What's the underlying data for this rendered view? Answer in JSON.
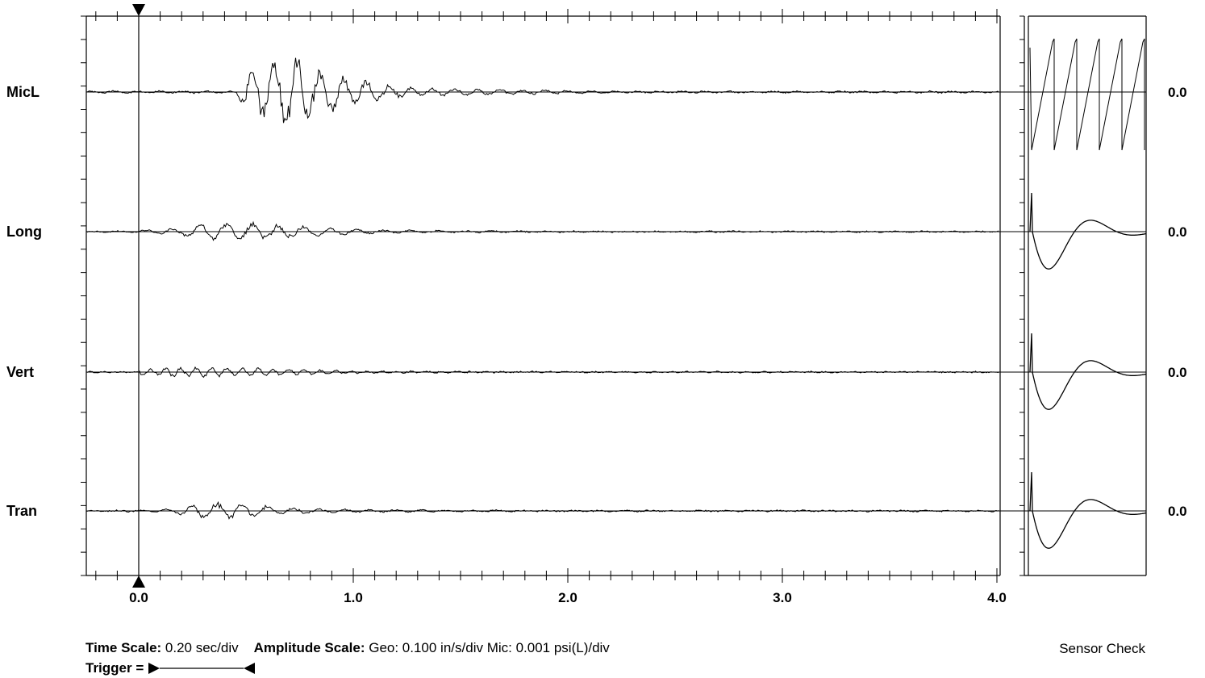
{
  "channels": [
    {
      "name": "MicL",
      "peak": "0.0"
    },
    {
      "name": "Long",
      "peak": "0.0"
    },
    {
      "name": "Vert",
      "peak": "0.0"
    },
    {
      "name": "Tran",
      "peak": "0.0"
    }
  ],
  "footer": {
    "time_scale_label": "Time Scale:",
    "time_scale_value": "0.20 sec/div",
    "amplitude_scale_label": "Amplitude Scale:",
    "amplitude_scale_value": "Geo: 0.100 in/s/div Mic: 0.001 psi(L)/div",
    "trigger_label": "Trigger =",
    "sensor_check_label": "Sensor Check"
  },
  "chart_data": {
    "type": "line",
    "x_tick_labels": [
      "0.0",
      "1.0",
      "2.0",
      "3.0",
      "4.0"
    ],
    "x_ticks": [
      0.0,
      1.0,
      2.0,
      3.0,
      4.0
    ],
    "xlim": [
      -0.25,
      4.02
    ],
    "trigger_time": 0.0,
    "series": [
      {
        "name": "MicL",
        "activity": [
          [
            0.46,
            0.1
          ],
          [
            0.5,
            0.45
          ],
          [
            0.55,
            0.55
          ],
          [
            0.65,
            0.7
          ],
          [
            0.7,
            1.0
          ],
          [
            0.75,
            0.9
          ],
          [
            0.8,
            0.7
          ],
          [
            0.85,
            0.5
          ],
          [
            0.9,
            0.45
          ],
          [
            0.95,
            0.35
          ],
          [
            1.05,
            0.25
          ],
          [
            1.2,
            0.12
          ],
          [
            1.4,
            0.08
          ],
          [
            1.6,
            0.06
          ],
          [
            1.9,
            0.04
          ],
          [
            2.2,
            0.02
          ]
        ]
      },
      {
        "name": "Long",
        "activity": [
          [
            0.0,
            0.05
          ],
          [
            0.2,
            0.12
          ],
          [
            0.3,
            0.3
          ],
          [
            0.4,
            0.28
          ],
          [
            0.55,
            0.3
          ],
          [
            0.7,
            0.2
          ],
          [
            0.9,
            0.12
          ],
          [
            1.1,
            0.06
          ],
          [
            1.4,
            0.03
          ],
          [
            1.8,
            0.02
          ]
        ]
      },
      {
        "name": "Vert",
        "activity": [
          [
            0.0,
            0.12
          ],
          [
            0.05,
            0.15
          ],
          [
            0.2,
            0.18
          ],
          [
            0.35,
            0.2
          ],
          [
            0.5,
            0.18
          ],
          [
            0.65,
            0.12
          ],
          [
            0.85,
            0.1
          ],
          [
            0.95,
            0.05
          ],
          [
            1.4,
            0.03
          ],
          [
            1.8,
            0.02
          ]
        ]
      },
      {
        "name": "Tran",
        "activity": [
          [
            0.1,
            0.04
          ],
          [
            0.2,
            0.15
          ],
          [
            0.3,
            0.32
          ],
          [
            0.45,
            0.28
          ],
          [
            0.55,
            0.22
          ],
          [
            0.65,
            0.15
          ],
          [
            0.8,
            0.08
          ],
          [
            1.0,
            0.05
          ],
          [
            1.4,
            0.03
          ],
          [
            1.8,
            0.02
          ]
        ]
      }
    ]
  }
}
